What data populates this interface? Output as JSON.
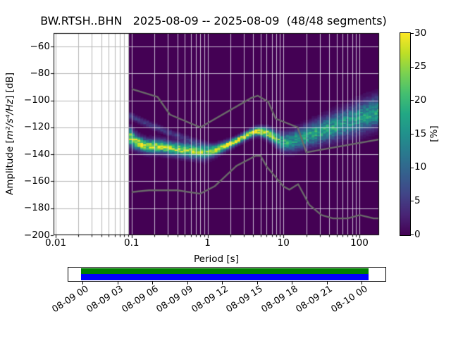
{
  "chart_data": {
    "type": "heatmap",
    "title": "BW.RTSH..BHN   2025-08-09 -- 2025-08-09  (48/48 segments)",
    "station": "BW.RTSH..BHN",
    "date_range": "2025-08-09 -- 2025-08-09",
    "segments": "48/48 segments",
    "xlabel": "Period [s]",
    "ylabel_prefix": "Amplitude [",
    "ylabel_math": "m²/s⁴/Hz",
    "ylabel_suffix": "] [dB]",
    "x_axis": {
      "scale": "log",
      "range_log10": [
        -2.028,
        2.26
      ],
      "major_ticks_log10": [
        -2,
        -1,
        0,
        1,
        2
      ],
      "major_tick_labels": [
        "0.01",
        "0.1",
        "1",
        "10",
        "100"
      ]
    },
    "y_axis": {
      "range": [
        -200,
        -50
      ],
      "tick_values": [
        -60,
        -80,
        -100,
        -120,
        -140,
        -160,
        -180,
        -200
      ],
      "tick_labels": [
        "−60",
        "−80",
        "−100",
        "−120",
        "−140",
        "−160",
        "−180",
        "−200"
      ]
    },
    "grid": true,
    "background_color": "#440154",
    "colorbar": {
      "label": "[%]",
      "vmin": 0,
      "vmax": 30,
      "tick_values": [
        0,
        5,
        10,
        15,
        20,
        25,
        30
      ],
      "tick_labels": [
        "0",
        "5",
        "10",
        "15",
        "20",
        "25",
        "30"
      ],
      "colormap": "viridis",
      "stops": [
        "#440154",
        "#482475",
        "#414487",
        "#355f8d",
        "#2a788e",
        "#21918c",
        "#22a884",
        "#44bf70",
        "#7ad151",
        "#bddf26",
        "#fde725"
      ]
    },
    "data_start_log10_period": -1.035,
    "period_bin_log10_width": 0.0376,
    "db_bin_width": 1,
    "ppsd_mode_points": [
      [
        -1.04,
        -126.5,
        24,
        4.2
      ],
      [
        -0.92,
        -131.5,
        30,
        3.2
      ],
      [
        -0.8,
        -134.0,
        26,
        3.0
      ],
      [
        -0.62,
        -134.0,
        28,
        3.0
      ],
      [
        -0.5,
        -135.5,
        25,
        3.0
      ],
      [
        -0.35,
        -136.5,
        27,
        3.1
      ],
      [
        -0.2,
        -137.5,
        25,
        3.2
      ],
      [
        -0.04,
        -138.5,
        24,
        3.2
      ],
      [
        0.1,
        -137.0,
        26,
        2.4
      ],
      [
        0.25,
        -133.5,
        30,
        2.0
      ],
      [
        0.4,
        -129.5,
        30,
        1.8
      ],
      [
        0.55,
        -125.0,
        31,
        1.8
      ],
      [
        0.66,
        -122.5,
        31,
        2.0
      ],
      [
        0.8,
        -124.5,
        28,
        2.6
      ],
      [
        0.9,
        -128.0,
        22,
        3.2
      ],
      [
        0.99,
        -131.0,
        18,
        4.0
      ],
      [
        1.1,
        -130.5,
        17,
        4.5
      ],
      [
        1.28,
        -127.0,
        17,
        5.0
      ],
      [
        1.46,
        -123.5,
        18,
        5.5
      ],
      [
        1.65,
        -120.0,
        17,
        6.0
      ],
      [
        1.83,
        -116.5,
        16,
        6.5
      ],
      [
        2.0,
        -113.0,
        16,
        7.0
      ],
      [
        2.13,
        -110.5,
        17,
        7.0
      ],
      [
        2.26,
        -108.0,
        17,
        7.0
      ]
    ],
    "secondary_mode_points": [
      [
        -1.04,
        -111,
        6,
        1.6
      ],
      [
        -0.8,
        -117,
        5.5,
        1.6
      ],
      [
        -0.5,
        -124,
        5,
        1.6
      ],
      [
        -0.2,
        -130,
        4,
        1.6
      ],
      [
        0.1,
        -134,
        0,
        1.6
      ]
    ],
    "noise_models": {
      "color": "#6a6a6a",
      "nhnm": [
        [
          0.1,
          -91.5
        ],
        [
          0.22,
          -97.4
        ],
        [
          0.32,
          -110.5
        ],
        [
          0.8,
          -120.0
        ],
        [
          3.8,
          -98.0
        ],
        [
          4.6,
          -96.5
        ],
        [
          6.3,
          -101.0
        ],
        [
          7.9,
          -113.5
        ],
        [
          15.4,
          -120.0
        ],
        [
          20.0,
          -138.5
        ],
        [
          354.8,
          -126.0
        ]
      ],
      "nlnm": [
        [
          0.1,
          -168.0
        ],
        [
          0.17,
          -166.7
        ],
        [
          0.4,
          -166.7
        ],
        [
          0.8,
          -169.2
        ],
        [
          1.24,
          -163.7
        ],
        [
          2.4,
          -148.6
        ],
        [
          4.3,
          -141.1
        ],
        [
          5.0,
          -141.1
        ],
        [
          6.0,
          -149.0
        ],
        [
          10.0,
          -163.8
        ],
        [
          12.0,
          -166.2
        ],
        [
          15.6,
          -162.1
        ],
        [
          21.9,
          -177.5
        ],
        [
          31.6,
          -185.0
        ],
        [
          45.0,
          -187.5
        ],
        [
          70.0,
          -187.5
        ],
        [
          101.0,
          -185.0
        ],
        [
          154.0,
          -187.5
        ],
        [
          328.0,
          -187.5
        ]
      ]
    },
    "timeline": {
      "tick_labels": [
        "08-09 00",
        "08-09 03",
        "08-09 06",
        "08-09 09",
        "08-09 12",
        "08-09 15",
        "08-09 18",
        "08-09 21",
        "08-10 00"
      ],
      "coverage_color": "#008000",
      "data_color": "#0000ff"
    }
  }
}
